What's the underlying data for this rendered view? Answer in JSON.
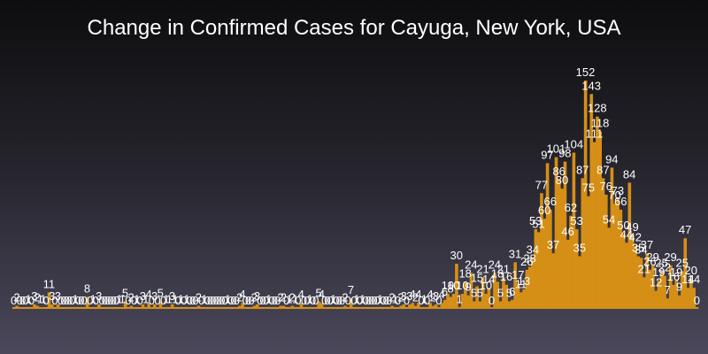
{
  "chart_data": {
    "type": "bar",
    "title": "Change in Confirmed Cases for Cayuga, New York, USA",
    "xlabel": "",
    "ylabel": "",
    "grid": false,
    "legend": "none",
    "ylim": [
      0,
      152
    ],
    "bar_color": "#d58f16",
    "background_top": "#0d0d0f",
    "background_bottom": "#4a485a",
    "values": [
      0,
      2,
      0,
      0,
      0,
      1,
      0,
      3,
      2,
      1,
      1,
      0,
      11,
      3,
      0,
      3,
      0,
      0,
      0,
      0,
      0,
      1,
      0,
      0,
      0,
      8,
      0,
      1,
      0,
      3,
      0,
      0,
      0,
      0,
      0,
      0,
      1,
      1,
      5,
      0,
      2,
      0,
      1,
      0,
      3,
      1,
      4,
      0,
      3,
      0,
      5,
      0,
      1,
      1,
      3,
      1,
      0,
      1,
      0,
      1,
      0,
      0,
      0,
      2,
      0,
      1,
      0,
      0,
      0,
      0,
      0,
      0,
      0,
      1,
      0,
      0,
      0,
      2,
      4,
      0,
      0,
      0,
      2,
      3,
      0,
      0,
      0,
      1,
      0,
      0,
      0,
      2,
      2,
      0,
      1,
      2,
      1,
      0,
      4,
      0,
      0,
      1,
      0,
      0,
      5,
      4,
      0,
      0,
      0,
      1,
      0,
      0,
      0,
      2,
      0,
      7,
      0,
      1,
      0,
      1,
      0,
      0,
      0,
      0,
      0,
      1,
      0,
      0,
      0,
      2,
      1,
      0,
      2,
      3,
      0,
      3,
      4,
      2,
      4,
      0,
      1,
      0,
      4,
      2,
      3,
      0,
      4,
      6,
      10,
      8,
      10,
      30,
      1,
      10,
      18,
      9,
      24,
      5,
      15,
      5,
      21,
      10,
      14,
      0,
      24,
      18,
      5,
      21,
      16,
      5,
      6,
      31,
      17,
      11,
      13,
      26,
      28,
      34,
      53,
      51,
      77,
      60,
      97,
      66,
      37,
      101,
      86,
      80,
      98,
      46,
      62,
      104,
      53,
      35,
      87,
      152,
      75,
      143,
      111,
      128,
      118,
      87,
      76,
      54,
      94,
      70,
      73,
      66,
      50,
      44,
      84,
      49,
      42,
      35,
      34,
      21,
      37,
      26,
      29,
      12,
      19,
      25,
      22,
      7,
      29,
      16,
      19,
      9,
      25,
      47,
      14,
      20,
      14,
      0
    ],
    "data_labels": [
      {
        "i": 0,
        "t": "0"
      },
      {
        "i": 1,
        "t": "2"
      },
      {
        "i": 2,
        "t": "0"
      },
      {
        "i": 3,
        "t": "0"
      },
      {
        "i": 4,
        "t": "0"
      },
      {
        "i": 5,
        "t": "1"
      },
      {
        "i": 6,
        "t": "0"
      },
      {
        "i": 7,
        "t": "3"
      },
      {
        "i": 8,
        "t": "2"
      },
      {
        "i": 9,
        "t": "1"
      },
      {
        "i": 10,
        "t": "1"
      },
      {
        "i": 11,
        "t": "0"
      },
      {
        "i": 12,
        "t": "11"
      },
      {
        "i": 13,
        "t": "3"
      },
      {
        "i": 14,
        "t": "0"
      },
      {
        "i": 15,
        "t": "3"
      },
      {
        "i": 16,
        "t": "0"
      },
      {
        "i": 17,
        "t": "0"
      },
      {
        "i": 18,
        "t": "0"
      },
      {
        "i": 19,
        "t": "0"
      },
      {
        "i": 20,
        "t": "0"
      },
      {
        "i": 21,
        "t": "1"
      },
      {
        "i": 22,
        "t": "0"
      },
      {
        "i": 23,
        "t": "0"
      },
      {
        "i": 24,
        "t": "0"
      },
      {
        "i": 25,
        "t": "8"
      },
      {
        "i": 26,
        "t": "0"
      },
      {
        "i": 27,
        "t": "1"
      },
      {
        "i": 28,
        "t": "0"
      },
      {
        "i": 29,
        "t": "3"
      },
      {
        "i": 30,
        "t": "0"
      },
      {
        "i": 31,
        "t": "0"
      },
      {
        "i": 32,
        "t": "0"
      },
      {
        "i": 33,
        "t": "0"
      },
      {
        "i": 34,
        "t": "0"
      },
      {
        "i": 35,
        "t": "0"
      },
      {
        "i": 36,
        "t": "1"
      },
      {
        "i": 37,
        "t": "1"
      },
      {
        "i": 38,
        "t": "5"
      },
      {
        "i": 39,
        "t": "0"
      },
      {
        "i": 40,
        "t": "2"
      },
      {
        "i": 41,
        "t": "0"
      },
      {
        "i": 42,
        "t": "1"
      },
      {
        "i": 43,
        "t": "0"
      },
      {
        "i": 44,
        "t": "3"
      },
      {
        "i": 45,
        "t": "1"
      },
      {
        "i": 46,
        "t": "4"
      },
      {
        "i": 47,
        "t": "0"
      },
      {
        "i": 48,
        "t": "3"
      },
      {
        "i": 49,
        "t": "0"
      },
      {
        "i": 50,
        "t": "5"
      },
      {
        "i": 51,
        "t": "0"
      },
      {
        "i": 52,
        "t": "1"
      },
      {
        "i": 53,
        "t": "1"
      },
      {
        "i": 54,
        "t": "3"
      },
      {
        "i": 55,
        "t": "1"
      },
      {
        "i": 56,
        "t": "0"
      },
      {
        "i": 57,
        "t": "1"
      },
      {
        "i": 58,
        "t": "0"
      },
      {
        "i": 59,
        "t": "1"
      },
      {
        "i": 60,
        "t": "0"
      },
      {
        "i": 61,
        "t": "0"
      },
      {
        "i": 62,
        "t": "0"
      },
      {
        "i": 63,
        "t": "2"
      },
      {
        "i": 64,
        "t": "0"
      },
      {
        "i": 65,
        "t": "1"
      },
      {
        "i": 66,
        "t": "0"
      },
      {
        "i": 67,
        "t": "0"
      },
      {
        "i": 68,
        "t": "0"
      },
      {
        "i": 69,
        "t": "0"
      },
      {
        "i": 70,
        "t": "0"
      },
      {
        "i": 71,
        "t": "0"
      },
      {
        "i": 72,
        "t": "0"
      },
      {
        "i": 73,
        "t": "1"
      },
      {
        "i": 74,
        "t": "0"
      },
      {
        "i": 75,
        "t": "0"
      },
      {
        "i": 76,
        "t": "0"
      },
      {
        "i": 77,
        "t": "2"
      },
      {
        "i": 78,
        "t": "4"
      },
      {
        "i": 79,
        "t": "0"
      },
      {
        "i": 80,
        "t": "0"
      },
      {
        "i": 81,
        "t": "0"
      },
      {
        "i": 82,
        "t": "2"
      },
      {
        "i": 83,
        "t": "3"
      },
      {
        "i": 84,
        "t": "0"
      },
      {
        "i": 85,
        "t": "0"
      },
      {
        "i": 86,
        "t": "0"
      },
      {
        "i": 87,
        "t": "1"
      },
      {
        "i": 88,
        "t": "0"
      },
      {
        "i": 89,
        "t": "0"
      },
      {
        "i": 90,
        "t": "0"
      },
      {
        "i": 91,
        "t": "2"
      },
      {
        "i": 92,
        "t": "2"
      },
      {
        "i": 93,
        "t": "0"
      },
      {
        "i": 94,
        "t": "1"
      },
      {
        "i": 95,
        "t": "2"
      },
      {
        "i": 96,
        "t": "1"
      },
      {
        "i": 97,
        "t": "0"
      },
      {
        "i": 98,
        "t": "4"
      },
      {
        "i": 99,
        "t": "0"
      },
      {
        "i": 100,
        "t": "0"
      },
      {
        "i": 101,
        "t": "1"
      },
      {
        "i": 102,
        "t": "0"
      },
      {
        "i": 103,
        "t": "0"
      },
      {
        "i": 104,
        "t": "5"
      },
      {
        "i": 105,
        "t": "4"
      },
      {
        "i": 106,
        "t": "0"
      },
      {
        "i": 107,
        "t": "0"
      },
      {
        "i": 108,
        "t": "0"
      },
      {
        "i": 109,
        "t": "1"
      },
      {
        "i": 110,
        "t": "0"
      },
      {
        "i": 111,
        "t": "0"
      },
      {
        "i": 112,
        "t": "0"
      },
      {
        "i": 113,
        "t": "2"
      },
      {
        "i": 114,
        "t": "0"
      },
      {
        "i": 115,
        "t": "7"
      },
      {
        "i": 116,
        "t": "0"
      },
      {
        "i": 117,
        "t": "1"
      },
      {
        "i": 118,
        "t": "0"
      },
      {
        "i": 119,
        "t": "1"
      },
      {
        "i": 120,
        "t": "0"
      },
      {
        "i": 121,
        "t": "0"
      },
      {
        "i": 122,
        "t": "0"
      },
      {
        "i": 123,
        "t": "0"
      },
      {
        "i": 124,
        "t": "0"
      },
      {
        "i": 125,
        "t": "1"
      },
      {
        "i": 126,
        "t": "0"
      },
      {
        "i": 127,
        "t": "0"
      },
      {
        "i": 128,
        "t": "0"
      },
      {
        "i": 129,
        "t": "2"
      },
      {
        "i": 130,
        "t": "1"
      },
      {
        "i": 131,
        "t": "0"
      },
      {
        "i": 132,
        "t": "2"
      },
      {
        "i": 133,
        "t": "3"
      },
      {
        "i": 134,
        "t": "0"
      },
      {
        "i": 135,
        "t": "3"
      },
      {
        "i": 136,
        "t": "4"
      },
      {
        "i": 137,
        "t": "2"
      },
      {
        "i": 138,
        "t": "4"
      },
      {
        "i": 139,
        "t": "0"
      },
      {
        "i": 140,
        "t": "1"
      },
      {
        "i": 141,
        "t": "0"
      },
      {
        "i": 142,
        "t": "4"
      },
      {
        "i": 143,
        "t": "2"
      },
      {
        "i": 144,
        "t": "3"
      },
      {
        "i": 145,
        "t": "0"
      },
      {
        "i": 146,
        "t": "4"
      },
      {
        "i": 147,
        "t": "6"
      },
      {
        "i": 148,
        "t": "10"
      },
      {
        "i": 149,
        "t": "8"
      },
      {
        "i": 150,
        "t": "10"
      },
      {
        "i": 151,
        "t": "30"
      },
      {
        "i": 152,
        "t": "1"
      },
      {
        "i": 153,
        "t": "10"
      },
      {
        "i": 154,
        "t": "18"
      },
      {
        "i": 155,
        "t": "9"
      },
      {
        "i": 156,
        "t": "24"
      },
      {
        "i": 157,
        "t": "5"
      },
      {
        "i": 158,
        "t": "15"
      },
      {
        "i": 159,
        "t": "5"
      },
      {
        "i": 160,
        "t": "21"
      },
      {
        "i": 161,
        "t": "10"
      },
      {
        "i": 162,
        "t": "14"
      },
      {
        "i": 163,
        "t": "0"
      },
      {
        "i": 164,
        "t": "24"
      },
      {
        "i": 165,
        "t": "18"
      },
      {
        "i": 166,
        "t": "5"
      },
      {
        "i": 167,
        "t": "21"
      },
      {
        "i": 168,
        "t": "16"
      },
      {
        "i": 169,
        "t": "5"
      },
      {
        "i": 170,
        "t": "6"
      },
      {
        "i": 171,
        "t": "31"
      },
      {
        "i": 172,
        "t": "17"
      },
      {
        "i": 173,
        "t": "11"
      },
      {
        "i": 174,
        "t": "13"
      },
      {
        "i": 175,
        "t": "26"
      },
      {
        "i": 176,
        "t": "28"
      },
      {
        "i": 177,
        "t": "34"
      },
      {
        "i": 178,
        "t": "53"
      },
      {
        "i": 179,
        "t": "51"
      },
      {
        "i": 180,
        "t": "77"
      },
      {
        "i": 181,
        "t": "60"
      },
      {
        "i": 182,
        "t": "97"
      },
      {
        "i": 183,
        "t": "66"
      },
      {
        "i": 184,
        "t": "37"
      },
      {
        "i": 185,
        "t": "101"
      },
      {
        "i": 186,
        "t": "86"
      },
      {
        "i": 187,
        "t": "80"
      },
      {
        "i": 188,
        "t": "98"
      },
      {
        "i": 189,
        "t": "46"
      },
      {
        "i": 190,
        "t": "62"
      },
      {
        "i": 191,
        "t": "104"
      },
      {
        "i": 192,
        "t": "53"
      },
      {
        "i": 193,
        "t": "35"
      },
      {
        "i": 194,
        "t": "87"
      },
      {
        "i": 195,
        "t": "152"
      },
      {
        "i": 196,
        "t": "75"
      },
      {
        "i": 197,
        "t": "143"
      },
      {
        "i": 198,
        "t": "111"
      },
      {
        "i": 199,
        "t": "128"
      },
      {
        "i": 200,
        "t": "118"
      },
      {
        "i": 201,
        "t": "87"
      },
      {
        "i": 202,
        "t": "76"
      },
      {
        "i": 203,
        "t": "54"
      },
      {
        "i": 204,
        "t": "94"
      },
      {
        "i": 205,
        "t": "70"
      },
      {
        "i": 206,
        "t": "73"
      },
      {
        "i": 207,
        "t": "66"
      },
      {
        "i": 208,
        "t": "50"
      },
      {
        "i": 209,
        "t": "44"
      },
      {
        "i": 210,
        "t": "84"
      },
      {
        "i": 211,
        "t": "49"
      },
      {
        "i": 212,
        "t": "42"
      },
      {
        "i": 213,
        "t": "35"
      },
      {
        "i": 214,
        "t": "34"
      },
      {
        "i": 215,
        "t": "21"
      },
      {
        "i": 216,
        "t": "37"
      },
      {
        "i": 217,
        "t": "26"
      },
      {
        "i": 218,
        "t": "29"
      },
      {
        "i": 219,
        "t": "12"
      },
      {
        "i": 220,
        "t": "19"
      },
      {
        "i": 221,
        "t": "25"
      },
      {
        "i": 222,
        "t": "22"
      },
      {
        "i": 223,
        "t": "7"
      },
      {
        "i": 224,
        "t": "29"
      },
      {
        "i": 225,
        "t": "16"
      },
      {
        "i": 226,
        "t": "19"
      },
      {
        "i": 227,
        "t": "9"
      },
      {
        "i": 228,
        "t": "25"
      },
      {
        "i": 229,
        "t": "47"
      },
      {
        "i": 230,
        "t": "14"
      },
      {
        "i": 231,
        "t": "20"
      },
      {
        "i": 232,
        "t": "14"
      },
      {
        "i": 233,
        "t": "0"
      }
    ]
  }
}
